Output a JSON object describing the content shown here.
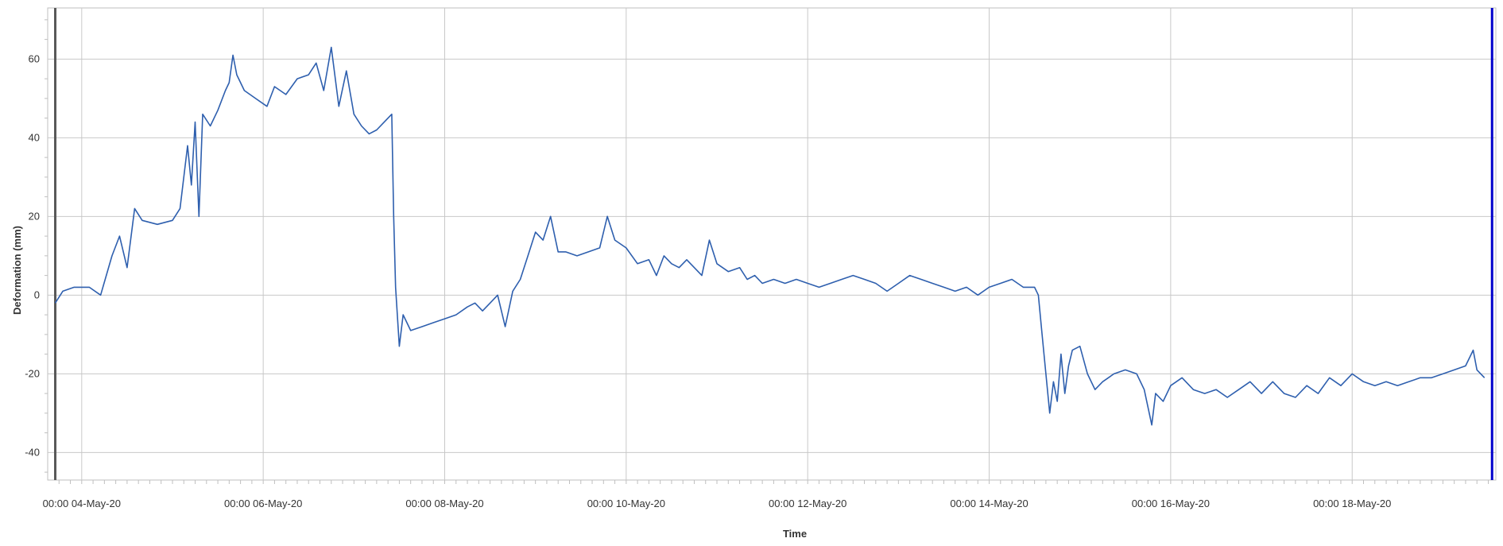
{
  "colors": {
    "series": "#2e5fae",
    "grid": "#c8c8c8",
    "start_marker": "#595959",
    "end_marker": "#0000cc",
    "axis": "#bfbfbf",
    "text": "#333333"
  },
  "chart_data": {
    "type": "line",
    "title": "",
    "xlabel": "Time",
    "ylabel": "Deformation (mm)",
    "ylim": [
      -47,
      73
    ],
    "xlim": [
      "2020-05-03T15:00",
      "2020-05-19T14:00"
    ],
    "grid": true,
    "legend": "none",
    "x_ticks": [
      {
        "x": "2020-05-04T00:00",
        "label": "00:00 04-May-20"
      },
      {
        "x": "2020-05-06T00:00",
        "label": "00:00 06-May-20"
      },
      {
        "x": "2020-05-08T00:00",
        "label": "00:00 08-May-20"
      },
      {
        "x": "2020-05-10T00:00",
        "label": "00:00 10-May-20"
      },
      {
        "x": "2020-05-12T00:00",
        "label": "00:00 12-May-20"
      },
      {
        "x": "2020-05-14T00:00",
        "label": "00:00 14-May-20"
      },
      {
        "x": "2020-05-16T00:00",
        "label": "00:00 16-May-20"
      },
      {
        "x": "2020-05-18T00:00",
        "label": "00:00 18-May-20"
      }
    ],
    "y_ticks": [
      60,
      40,
      20,
      0,
      -20,
      -40
    ],
    "markers": [
      {
        "name": "start",
        "x": "2020-05-03T17:00"
      },
      {
        "name": "end",
        "x": "2020-05-19T13:00"
      }
    ],
    "series": [
      {
        "values": [
          [
            "2020-05-03T17:00",
            -2
          ],
          [
            "2020-05-03T19:00",
            1
          ],
          [
            "2020-05-03T22:00",
            2
          ],
          [
            "2020-05-04T02:00",
            2
          ],
          [
            "2020-05-04T05:00",
            0
          ],
          [
            "2020-05-04T08:00",
            10
          ],
          [
            "2020-05-04T10:00",
            15
          ],
          [
            "2020-05-04T12:00",
            7
          ],
          [
            "2020-05-04T14:00",
            22
          ],
          [
            "2020-05-04T16:00",
            19
          ],
          [
            "2020-05-04T20:00",
            18
          ],
          [
            "2020-05-05T00:00",
            19
          ],
          [
            "2020-05-05T02:00",
            22
          ],
          [
            "2020-05-05T04:00",
            38
          ],
          [
            "2020-05-05T05:00",
            28
          ],
          [
            "2020-05-05T06:00",
            44
          ],
          [
            "2020-05-05T07:00",
            20
          ],
          [
            "2020-05-05T08:00",
            46
          ],
          [
            "2020-05-05T10:00",
            43
          ],
          [
            "2020-05-05T12:00",
            47
          ],
          [
            "2020-05-05T14:00",
            52
          ],
          [
            "2020-05-05T15:00",
            54
          ],
          [
            "2020-05-05T16:00",
            61
          ],
          [
            "2020-05-05T17:00",
            56
          ],
          [
            "2020-05-05T19:00",
            52
          ],
          [
            "2020-05-05T22:00",
            50
          ],
          [
            "2020-05-06T01:00",
            48
          ],
          [
            "2020-05-06T03:00",
            53
          ],
          [
            "2020-05-06T06:00",
            51
          ],
          [
            "2020-05-06T09:00",
            55
          ],
          [
            "2020-05-06T12:00",
            56
          ],
          [
            "2020-05-06T14:00",
            59
          ],
          [
            "2020-05-06T16:00",
            52
          ],
          [
            "2020-05-06T18:00",
            63
          ],
          [
            "2020-05-06T20:00",
            48
          ],
          [
            "2020-05-06T22:00",
            57
          ],
          [
            "2020-05-07T00:00",
            46
          ],
          [
            "2020-05-07T02:00",
            43
          ],
          [
            "2020-05-07T04:00",
            41
          ],
          [
            "2020-05-07T06:00",
            42
          ],
          [
            "2020-05-07T08:00",
            44
          ],
          [
            "2020-05-07T10:00",
            46
          ],
          [
            "2020-05-07T10:30",
            20
          ],
          [
            "2020-05-07T11:00",
            2
          ],
          [
            "2020-05-07T12:00",
            -13
          ],
          [
            "2020-05-07T13:00",
            -5
          ],
          [
            "2020-05-07T15:00",
            -9
          ],
          [
            "2020-05-07T18:00",
            -8
          ],
          [
            "2020-05-07T21:00",
            -7
          ],
          [
            "2020-05-08T00:00",
            -6
          ],
          [
            "2020-05-08T03:00",
            -5
          ],
          [
            "2020-05-08T06:00",
            -3
          ],
          [
            "2020-05-08T08:00",
            -2
          ],
          [
            "2020-05-08T10:00",
            -4
          ],
          [
            "2020-05-08T12:00",
            -2
          ],
          [
            "2020-05-08T14:00",
            0
          ],
          [
            "2020-05-08T16:00",
            -8
          ],
          [
            "2020-05-08T18:00",
            1
          ],
          [
            "2020-05-08T20:00",
            4
          ],
          [
            "2020-05-08T22:00",
            10
          ],
          [
            "2020-05-09T00:00",
            16
          ],
          [
            "2020-05-09T02:00",
            14
          ],
          [
            "2020-05-09T04:00",
            20
          ],
          [
            "2020-05-09T06:00",
            11
          ],
          [
            "2020-05-09T08:00",
            11
          ],
          [
            "2020-05-09T11:00",
            10
          ],
          [
            "2020-05-09T14:00",
            11
          ],
          [
            "2020-05-09T17:00",
            12
          ],
          [
            "2020-05-09T19:00",
            20
          ],
          [
            "2020-05-09T21:00",
            14
          ],
          [
            "2020-05-10T00:00",
            12
          ],
          [
            "2020-05-10T03:00",
            8
          ],
          [
            "2020-05-10T06:00",
            9
          ],
          [
            "2020-05-10T08:00",
            5
          ],
          [
            "2020-05-10T10:00",
            10
          ],
          [
            "2020-05-10T12:00",
            8
          ],
          [
            "2020-05-10T14:00",
            7
          ],
          [
            "2020-05-10T16:00",
            9
          ],
          [
            "2020-05-10T18:00",
            7
          ],
          [
            "2020-05-10T20:00",
            5
          ],
          [
            "2020-05-10T22:00",
            14
          ],
          [
            "2020-05-11T00:00",
            8
          ],
          [
            "2020-05-11T03:00",
            6
          ],
          [
            "2020-05-11T06:00",
            7
          ],
          [
            "2020-05-11T08:00",
            4
          ],
          [
            "2020-05-11T10:00",
            5
          ],
          [
            "2020-05-11T12:00",
            3
          ],
          [
            "2020-05-11T15:00",
            4
          ],
          [
            "2020-05-11T18:00",
            3
          ],
          [
            "2020-05-11T21:00",
            4
          ],
          [
            "2020-05-12T00:00",
            3
          ],
          [
            "2020-05-12T03:00",
            2
          ],
          [
            "2020-05-12T06:00",
            3
          ],
          [
            "2020-05-12T09:00",
            4
          ],
          [
            "2020-05-12T12:00",
            5
          ],
          [
            "2020-05-12T15:00",
            4
          ],
          [
            "2020-05-12T18:00",
            3
          ],
          [
            "2020-05-12T21:00",
            1
          ],
          [
            "2020-05-13T00:00",
            3
          ],
          [
            "2020-05-13T03:00",
            5
          ],
          [
            "2020-05-13T06:00",
            4
          ],
          [
            "2020-05-13T09:00",
            3
          ],
          [
            "2020-05-13T12:00",
            2
          ],
          [
            "2020-05-13T15:00",
            1
          ],
          [
            "2020-05-13T18:00",
            2
          ],
          [
            "2020-05-13T21:00",
            0
          ],
          [
            "2020-05-14T00:00",
            2
          ],
          [
            "2020-05-14T03:00",
            3
          ],
          [
            "2020-05-14T06:00",
            4
          ],
          [
            "2020-05-14T09:00",
            2
          ],
          [
            "2020-05-14T12:00",
            2
          ],
          [
            "2020-05-14T13:00",
            0
          ],
          [
            "2020-05-14T14:00",
            -10
          ],
          [
            "2020-05-14T15:00",
            -20
          ],
          [
            "2020-05-14T16:00",
            -30
          ],
          [
            "2020-05-14T17:00",
            -22
          ],
          [
            "2020-05-14T18:00",
            -27
          ],
          [
            "2020-05-14T19:00",
            -15
          ],
          [
            "2020-05-14T20:00",
            -25
          ],
          [
            "2020-05-14T21:00",
            -18
          ],
          [
            "2020-05-14T22:00",
            -14
          ],
          [
            "2020-05-15T00:00",
            -13
          ],
          [
            "2020-05-15T02:00",
            -20
          ],
          [
            "2020-05-15T04:00",
            -24
          ],
          [
            "2020-05-15T06:00",
            -22
          ],
          [
            "2020-05-15T09:00",
            -20
          ],
          [
            "2020-05-15T12:00",
            -19
          ],
          [
            "2020-05-15T15:00",
            -20
          ],
          [
            "2020-05-15T17:00",
            -24
          ],
          [
            "2020-05-15T19:00",
            -33
          ],
          [
            "2020-05-15T20:00",
            -25
          ],
          [
            "2020-05-15T22:00",
            -27
          ],
          [
            "2020-05-16T00:00",
            -23
          ],
          [
            "2020-05-16T03:00",
            -21
          ],
          [
            "2020-05-16T06:00",
            -24
          ],
          [
            "2020-05-16T09:00",
            -25
          ],
          [
            "2020-05-16T12:00",
            -24
          ],
          [
            "2020-05-16T15:00",
            -26
          ],
          [
            "2020-05-16T18:00",
            -24
          ],
          [
            "2020-05-16T21:00",
            -22
          ],
          [
            "2020-05-17T00:00",
            -25
          ],
          [
            "2020-05-17T03:00",
            -22
          ],
          [
            "2020-05-17T06:00",
            -25
          ],
          [
            "2020-05-17T09:00",
            -26
          ],
          [
            "2020-05-17T12:00",
            -23
          ],
          [
            "2020-05-17T15:00",
            -25
          ],
          [
            "2020-05-17T18:00",
            -21
          ],
          [
            "2020-05-17T21:00",
            -23
          ],
          [
            "2020-05-18T00:00",
            -20
          ],
          [
            "2020-05-18T03:00",
            -22
          ],
          [
            "2020-05-18T06:00",
            -23
          ],
          [
            "2020-05-18T09:00",
            -22
          ],
          [
            "2020-05-18T12:00",
            -23
          ],
          [
            "2020-05-18T15:00",
            -22
          ],
          [
            "2020-05-18T18:00",
            -21
          ],
          [
            "2020-05-18T21:00",
            -21
          ],
          [
            "2020-05-19T00:00",
            -20
          ],
          [
            "2020-05-19T03:00",
            -19
          ],
          [
            "2020-05-19T06:00",
            -18
          ],
          [
            "2020-05-19T08:00",
            -14
          ],
          [
            "2020-05-19T09:00",
            -19
          ],
          [
            "2020-05-19T11:00",
            -21
          ]
        ]
      }
    ]
  }
}
